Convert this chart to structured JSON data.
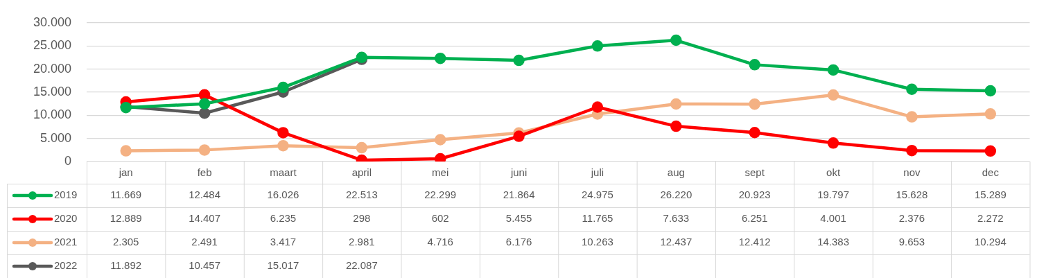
{
  "chart_data": {
    "type": "line",
    "categories": [
      "jan",
      "feb",
      "maart",
      "april",
      "mei",
      "juni",
      "juli",
      "aug",
      "sept",
      "okt",
      "nov",
      "dec"
    ],
    "series": [
      {
        "name": "2019",
        "color": "#00b050",
        "values": [
          11669,
          12484,
          16026,
          22513,
          22299,
          21864,
          24975,
          26220,
          20923,
          19797,
          15628,
          15289
        ],
        "value_labels": [
          "11.669",
          "12.484",
          "16.026",
          "22.513",
          "22.299",
          "21.864",
          "24.975",
          "26.220",
          "20.923",
          "19.797",
          "15.628",
          "15.289"
        ]
      },
      {
        "name": "2020",
        "color": "#ff0000",
        "values": [
          12889,
          14407,
          6235,
          298,
          602,
          5455,
          11765,
          7633,
          6251,
          4001,
          2376,
          2272
        ],
        "value_labels": [
          "12.889",
          "14.407",
          "6.235",
          "298",
          "602",
          "5.455",
          "11.765",
          "7.633",
          "6.251",
          "4.001",
          "2.376",
          "2.272"
        ]
      },
      {
        "name": "2021",
        "color": "#f4b183",
        "values": [
          2305,
          2491,
          3417,
          2981,
          4716,
          6176,
          10263,
          12437,
          12412,
          14383,
          9653,
          10294
        ],
        "value_labels": [
          "2.305",
          "2.491",
          "3.417",
          "2.981",
          "4.716",
          "6.176",
          "10.263",
          "12.437",
          "12.412",
          "14.383",
          "9.653",
          "10.294"
        ]
      },
      {
        "name": "2022",
        "color": "#595959",
        "values": [
          11892,
          10457,
          15017,
          22087,
          null,
          null,
          null,
          null,
          null,
          null,
          null,
          null
        ],
        "value_labels": [
          "11.892",
          "10.457",
          "15.017",
          "22.087",
          null,
          null,
          null,
          null,
          null,
          null,
          null,
          null
        ]
      }
    ],
    "ylim": [
      0,
      30000
    ],
    "yticks": [
      0,
      {
        "value": 5000,
        "label": "5.000"
      },
      {
        "value": 10000,
        "label": "10.000"
      },
      {
        "value": 15000,
        "label": "15.000"
      },
      {
        "value": 20000,
        "label": "20.000"
      },
      {
        "value": 25000,
        "label": "25.000"
      },
      {
        "value": 30000,
        "label": "30.000"
      }
    ],
    "grid": "y",
    "legend": "bottom",
    "marker": "circle",
    "line_style": "solid"
  }
}
